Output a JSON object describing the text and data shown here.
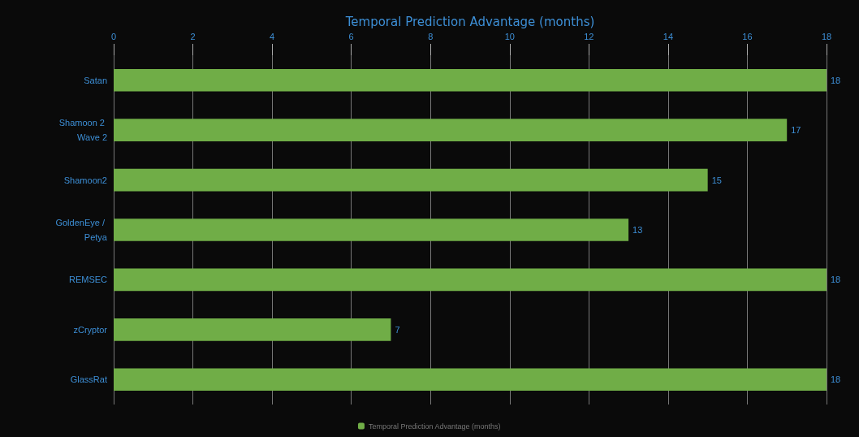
{
  "chart_data": {
    "type": "bar",
    "orientation": "horizontal",
    "xlabel": "Temporal Prediction Advantage (months)",
    "categories": [
      "Satan",
      "Shamoon 2 Wave 2",
      "Shamoon2",
      "GoldenEye / Petya",
      "REMSEC",
      "zCryptor",
      "GlassRat"
    ],
    "series": [
      {
        "name": "Temporal Prediction Advantage (months)",
        "color": "#70ad47",
        "values": [
          18,
          17,
          15,
          13,
          18,
          7,
          18
        ]
      }
    ],
    "xlim": [
      0,
      18
    ],
    "xticks": [
      0,
      2,
      4,
      6,
      8,
      10,
      12,
      14,
      16,
      18
    ],
    "grid": "x",
    "data_labels": true,
    "legend": "bottom"
  }
}
